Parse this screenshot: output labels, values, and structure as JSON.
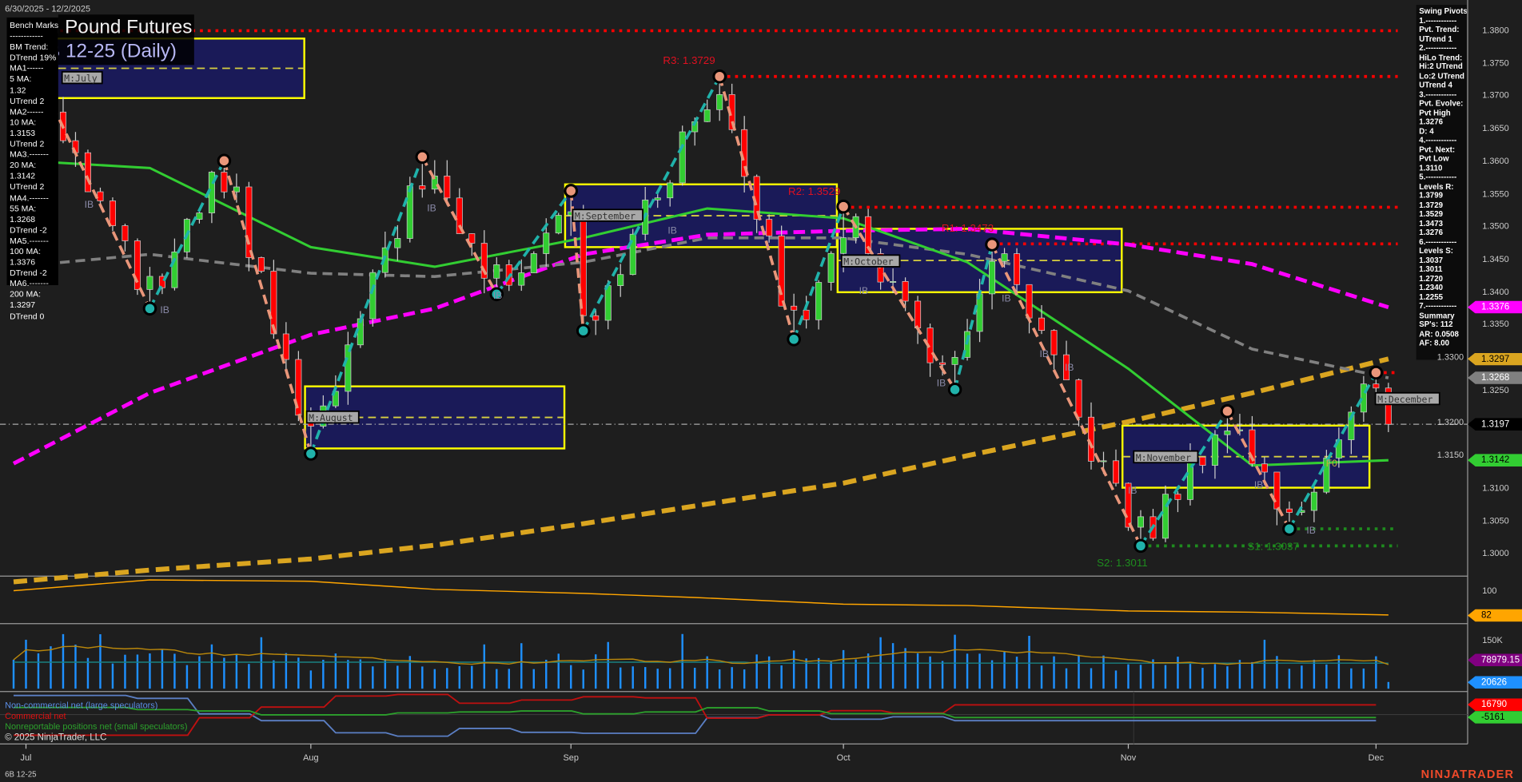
{
  "header": {
    "date_range": "6/30/2025 - 12/2/2025",
    "title": "British Pound Futures",
    "subtitle": "6B 12-25 (Daily)"
  },
  "bench_marks": [
    "Bench Marks",
    "------------",
    "BM Trend:",
    "DTrend 19%",
    "MA1------",
    "5 MA:",
    "1.32",
    "UTrend 2",
    "MA2------",
    "10 MA:",
    "1.3153",
    "UTrend 2",
    "MA3.-------",
    "20 MA:",
    "1.3142",
    "UTrend 2",
    "MA4.-------",
    "55 MA:",
    "1.3268",
    "DTrend -2",
    "MA5.-------",
    "100 MA:",
    "1.3376",
    "DTrend -2",
    "MA6.-------",
    "200 MA:",
    "1.3297",
    "DTrend 0"
  ],
  "swing_pivots": [
    "Swing Pivots",
    "1.------------",
    "Pvt. Trend:",
    "UTrend 1",
    "2.------------",
    "HiLo Trend:",
    "Hi:2 UTrend",
    "Lo:2 UTrend",
    "UTrend 4",
    "3.------------",
    "Pvt. Evolve:",
    "Pvt High",
    "1.3276",
    "D: 4",
    "4.------------",
    "Pvt. Next:",
    "Pvt Low",
    "1.3110",
    "5.------------",
    "Levels R:",
    "1.3799",
    "1.3729",
    "1.3529",
    "1.3473",
    "1.3276",
    "6.------------",
    "Levels S:",
    "1.3037",
    "1.3011",
    "1.2720",
    "1.2340",
    "1.2255",
    "7.------------",
    "Summary",
    "SP's: 112",
    "AR: 0.0508",
    "AF: 8.00"
  ],
  "price_axis": {
    "ticks": [
      "1.3000",
      "1.3050",
      "1.3100",
      "1.3150",
      "1.3200",
      "1.3250",
      "1.3300",
      "1.3350",
      "1.3400",
      "1.3450",
      "1.3500",
      "1.3550",
      "1.3600",
      "1.3650",
      "1.3700",
      "1.3750",
      "1.3800"
    ]
  },
  "x_axis": {
    "months": [
      {
        "label": "Jul",
        "date": "2025-07-01"
      },
      {
        "label": "Aug",
        "date": "2025-08-01"
      },
      {
        "label": "Sep",
        "date": "2025-09-01"
      },
      {
        "label": "Oct",
        "date": "2025-10-01"
      },
      {
        "label": "Nov",
        "date": "2025-11-03"
      },
      {
        "label": "Dec",
        "date": "2025-12-01"
      }
    ]
  },
  "tags": [
    {
      "label": "1.3376",
      "value": 1.3376,
      "bg": "#ff00ff",
      "fg": "#ffffff"
    },
    {
      "label": "1.3297",
      "value": 1.3297,
      "bg": "#daa520",
      "fg": "#000000"
    },
    {
      "label": "1.3268",
      "value": 1.3268,
      "bg": "#808080",
      "fg": "#ffffff"
    },
    {
      "label": "1.3197",
      "value": 1.3197,
      "bg": "#000000",
      "fg": "#ffffff"
    },
    {
      "label": "1.3142",
      "value": 1.3142,
      "bg": "#32cd32",
      "fg": "#000000"
    }
  ],
  "indicator": {
    "tick": "100",
    "last_label": "82",
    "color": "#ffa500",
    "points": [
      [
        "2025-06-30",
        100
      ],
      [
        "2025-07-15",
        108
      ],
      [
        "2025-08-01",
        107
      ],
      [
        "2025-08-15",
        101
      ],
      [
        "2025-09-02",
        98
      ],
      [
        "2025-09-15",
        95
      ],
      [
        "2025-10-01",
        90
      ],
      [
        "2025-10-15",
        89
      ],
      [
        "2025-11-03",
        85
      ],
      [
        "2025-11-17",
        84
      ],
      [
        "2025-12-02",
        82
      ]
    ]
  },
  "volume": {
    "tick": "150K",
    "tick_value": 150000,
    "avg_label": "78979.15",
    "last_label": "20626",
    "last_value": 20626,
    "bar_color": "#1e90ff",
    "avg_color": "#800080"
  },
  "cot": {
    "legend": {
      "noncommercial": "Non-commercial net (large speculators)",
      "commercial": "Commercial net",
      "nonreportable": "Nonreportable positions net (small speculators)"
    },
    "commercial_label": "16790",
    "nonreportable_label": "-5161",
    "noncommercial": [
      [
        "2025-06-30",
        33000
      ],
      [
        "2025-07-14",
        28000
      ],
      [
        "2025-07-21",
        1200
      ],
      [
        "2025-07-28",
        -10600
      ],
      [
        "2025-08-05",
        -31500
      ],
      [
        "2025-08-12",
        -37400
      ],
      [
        "2025-08-19",
        -24000
      ],
      [
        "2025-08-26",
        -30700
      ],
      [
        "2025-09-02",
        -32300
      ],
      [
        "2025-09-16",
        -5500
      ],
      [
        "2025-09-23",
        -500
      ],
      [
        "2025-09-30",
        -8000
      ],
      [
        "2025-10-07",
        -3900
      ],
      [
        "2025-10-14",
        -10600
      ],
      [
        "2025-12-01",
        -10600
      ]
    ],
    "commercial": [
      [
        "2025-06-30",
        -35700
      ],
      [
        "2025-07-21",
        -5500
      ],
      [
        "2025-07-28",
        12900
      ],
      [
        "2025-08-05",
        32000
      ],
      [
        "2025-08-12",
        34700
      ],
      [
        "2025-08-19",
        19600
      ],
      [
        "2025-08-26",
        25100
      ],
      [
        "2025-09-02",
        30700
      ],
      [
        "2025-09-09",
        28800
      ],
      [
        "2025-09-16",
        -6200
      ],
      [
        "2025-09-23",
        -500
      ],
      [
        "2025-09-30",
        6700
      ],
      [
        "2025-10-07",
        2800
      ],
      [
        "2025-10-14",
        16790
      ],
      [
        "2025-12-01",
        16790
      ]
    ],
    "nonreportable": [
      [
        "2025-06-30",
        12200
      ],
      [
        "2025-07-14",
        8500
      ],
      [
        "2025-07-21",
        6200
      ],
      [
        "2025-07-28",
        -500
      ],
      [
        "2025-08-12",
        2800
      ],
      [
        "2025-08-19",
        4500
      ],
      [
        "2025-08-26",
        6200
      ],
      [
        "2025-09-02",
        1200
      ],
      [
        "2025-09-09",
        4500
      ],
      [
        "2025-09-16",
        11700
      ],
      [
        "2025-09-23",
        6200
      ],
      [
        "2025-09-30",
        1700
      ],
      [
        "2025-10-14",
        -5161
      ],
      [
        "2025-12-01",
        -5161
      ]
    ]
  },
  "chart_data": {
    "type": "candlestick",
    "last_price": 1.3197,
    "swing_pivots": [
      [
        "2025-07-01",
        "H",
        1.377
      ],
      [
        "2025-07-15",
        "L",
        1.3374
      ],
      [
        "2025-07-23",
        "H",
        1.36
      ],
      [
        "2025-08-01",
        "L",
        1.3152
      ],
      [
        "2025-08-14",
        "H",
        1.3606
      ],
      [
        "2025-08-22",
        "L",
        1.3396
      ],
      [
        "2025-09-01",
        "H",
        1.3554
      ],
      [
        "2025-09-02",
        "L",
        1.334
      ],
      [
        "2025-09-17",
        "H",
        1.3729
      ],
      [
        "2025-09-25",
        "L",
        1.3327
      ],
      [
        "2025-10-01",
        "H",
        1.353
      ],
      [
        "2025-10-14",
        "L",
        1.325
      ],
      [
        "2025-10-17",
        "H",
        1.3472
      ],
      [
        "2025-11-04",
        "L",
        1.3011
      ],
      [
        "2025-11-13",
        "H",
        1.3217
      ],
      [
        "2025-11-20",
        "L",
        1.3037
      ],
      [
        "2025-12-01",
        "H",
        1.3276
      ],
      [
        "2025-12-02",
        "C",
        1.3197
      ]
    ],
    "levels": [
      {
        "label": "",
        "value": 1.3799,
        "kind": "R",
        "from": "2025-06-30"
      },
      {
        "label": "R3: 1.3729",
        "value": 1.3729,
        "kind": "R",
        "from": "2025-09-17"
      },
      {
        "label": "R2: 1.3529",
        "value": 1.3529,
        "kind": "R",
        "from": "2025-10-01"
      },
      {
        "label": "R1: 1.3473",
        "value": 1.3473,
        "kind": "R",
        "from": "2025-10-17"
      },
      {
        "label": "",
        "value": 1.3276,
        "kind": "R",
        "from": "2025-12-01"
      },
      {
        "label": "S1: 1.3037",
        "value": 1.3037,
        "kind": "S",
        "from": "2025-11-20"
      },
      {
        "label": "S2: 1.3011",
        "value": 1.3011,
        "kind": "S",
        "from": "2025-11-04"
      }
    ],
    "monthly_boxes": [
      {
        "label": "M:July",
        "from": "2025-06-30",
        "to": "2025-07-31",
        "high": 1.3787,
        "low": 1.3696
      },
      {
        "label": "M:August",
        "from": "2025-08-01",
        "to": "2025-08-29",
        "high": 1.3255,
        "low": 1.316
      },
      {
        "label": "M:September",
        "from": "2025-09-01",
        "to": "2025-09-30",
        "high": 1.3564,
        "low": 1.3468
      },
      {
        "label": "M:October",
        "from": "2025-10-01",
        "to": "2025-10-31",
        "high": 1.3496,
        "low": 1.3399
      },
      {
        "label": "M:November",
        "from": "2025-11-03",
        "to": "2025-11-28",
        "high": 1.3195,
        "low": 1.31
      },
      {
        "label": "M:December",
        "from": "2025-12-01",
        "to": "2025-12-01",
        "high": null,
        "low": null
      }
    ],
    "moving_averages": [
      {
        "name": "20 MA",
        "color": "#32cd32",
        "points": [
          [
            "2025-06-30",
            1.3601
          ],
          [
            "2025-07-15",
            1.3589
          ],
          [
            "2025-08-01",
            1.3468
          ],
          [
            "2025-08-15",
            1.3438
          ],
          [
            "2025-09-02",
            1.3482
          ],
          [
            "2025-09-16",
            1.3527
          ],
          [
            "2025-10-01",
            1.3512
          ],
          [
            "2025-10-15",
            1.3445
          ],
          [
            "2025-11-03",
            1.3282
          ],
          [
            "2025-11-17",
            1.3134
          ],
          [
            "2025-12-02",
            1.3142
          ]
        ]
      },
      {
        "name": "55 MA",
        "color": "#808080",
        "points": [
          [
            "2025-06-30",
            1.3438
          ],
          [
            "2025-07-15",
            1.3457
          ],
          [
            "2025-08-01",
            1.3428
          ],
          [
            "2025-08-15",
            1.3423
          ],
          [
            "2025-09-02",
            1.3445
          ],
          [
            "2025-09-16",
            1.3482
          ],
          [
            "2025-10-01",
            1.3482
          ],
          [
            "2025-10-15",
            1.3457
          ],
          [
            "2025-11-03",
            1.3401
          ],
          [
            "2025-11-17",
            1.3312
          ],
          [
            "2025-12-02",
            1.3268
          ]
        ]
      },
      {
        "name": "100 MA",
        "color": "#ff00ff",
        "points": [
          [
            "2025-06-30",
            1.3137
          ],
          [
            "2025-07-15",
            1.3245
          ],
          [
            "2025-08-01",
            1.3334
          ],
          [
            "2025-08-15",
            1.3374
          ],
          [
            "2025-09-02",
            1.3457
          ],
          [
            "2025-09-16",
            1.3487
          ],
          [
            "2025-10-01",
            1.3493
          ],
          [
            "2025-10-15",
            1.3496
          ],
          [
            "2025-11-03",
            1.3472
          ],
          [
            "2025-11-17",
            1.3442
          ],
          [
            "2025-12-02",
            1.3376
          ]
        ]
      },
      {
        "name": "200 MA",
        "color": "#daa520",
        "points": [
          [
            "2025-06-30",
            1.2956
          ],
          [
            "2025-07-15",
            1.2974
          ],
          [
            "2025-08-01",
            1.2991
          ],
          [
            "2025-08-15",
            1.3012
          ],
          [
            "2025-09-02",
            1.3045
          ],
          [
            "2025-09-16",
            1.3075
          ],
          [
            "2025-10-01",
            1.3107
          ],
          [
            "2025-10-15",
            1.3149
          ],
          [
            "2025-11-03",
            1.3201
          ],
          [
            "2025-11-17",
            1.3245
          ],
          [
            "2025-12-02",
            1.3297
          ]
        ]
      }
    ],
    "annotations": {
      "ib": "IB",
      "f0": "F0"
    },
    "ylim": [
      1.295,
      1.382
    ]
  },
  "footer": {
    "copyright": "© 2025 NinjaTrader, LLC",
    "contract": "6B 12-25",
    "brand": "NINJATRADER"
  }
}
